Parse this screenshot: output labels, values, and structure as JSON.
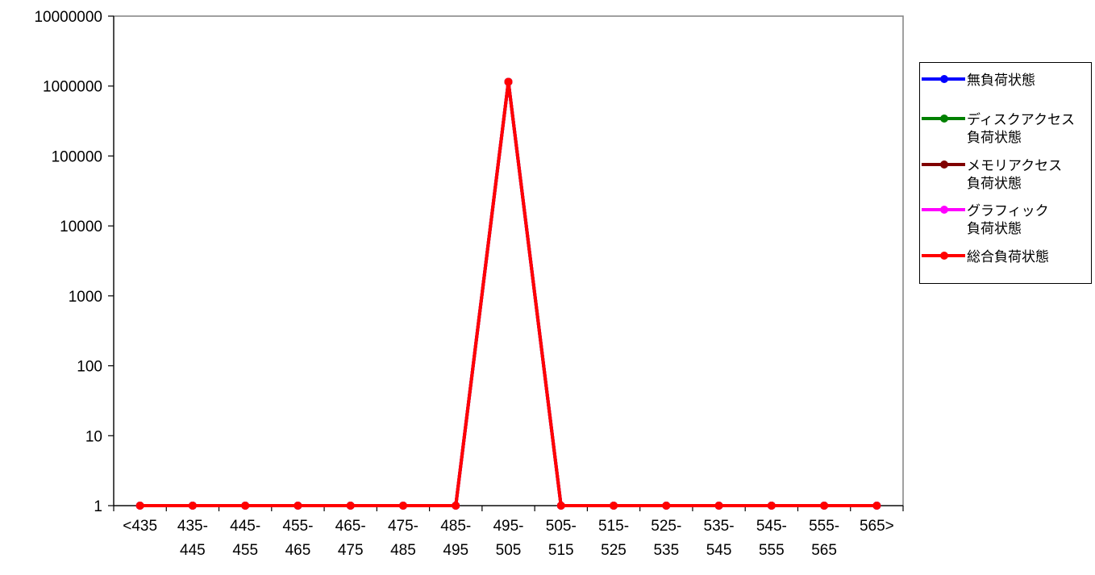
{
  "chart_data": {
    "type": "line",
    "title": "",
    "xlabel": "",
    "ylabel": "",
    "y_scale": "log",
    "ylim": [
      1,
      10000000
    ],
    "y_ticks": [
      "1",
      "10",
      "100",
      "1000",
      "10000",
      "100000",
      "1000000",
      "10000000"
    ],
    "categories": [
      "<435",
      "435-\n445",
      "445-\n455",
      "455-\n465",
      "465-\n475",
      "475-\n485",
      "485-\n495",
      "495-\n505",
      "505-\n515",
      "515-\n525",
      "525-\n535",
      "535-\n545",
      "545-\n555",
      "555-\n565",
      "565>"
    ],
    "grid": false,
    "legend_position": "right",
    "series": [
      {
        "name": "無負荷状態",
        "color": "#0000ff",
        "values": [
          1,
          1,
          1,
          1,
          1,
          1,
          1,
          1150000,
          1,
          1,
          1,
          1,
          1,
          1,
          1
        ]
      },
      {
        "name": "ディスクアクセス\n負荷状態",
        "color": "#008000",
        "values": [
          1,
          1,
          1,
          1,
          1,
          1,
          1,
          1150000,
          1,
          1,
          1,
          1,
          1,
          1,
          1
        ]
      },
      {
        "name": "メモリアクセス\n負荷状態",
        "color": "#800000",
        "values": [
          1,
          1,
          1,
          1,
          1,
          1,
          1,
          1150000,
          1,
          1,
          1,
          1,
          1,
          1,
          1
        ]
      },
      {
        "name": "グラフィック\n負荷状態",
        "color": "#ff00ff",
        "values": [
          1,
          1,
          1,
          1,
          1,
          1,
          1,
          1150000,
          1,
          1,
          1,
          1,
          1,
          1,
          1
        ]
      },
      {
        "name": "総合負荷状態",
        "color": "#ff0000",
        "values": [
          1,
          1,
          1,
          1,
          1,
          1,
          1,
          1150000,
          1,
          1,
          1,
          1,
          1,
          1,
          1
        ]
      }
    ]
  }
}
